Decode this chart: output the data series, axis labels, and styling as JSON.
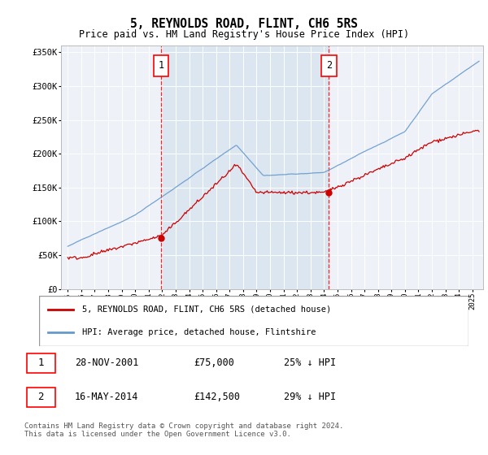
{
  "title": "5, REYNOLDS ROAD, FLINT, CH6 5RS",
  "subtitle": "Price paid vs. HM Land Registry's House Price Index (HPI)",
  "sale1_label": "28-NOV-2001",
  "sale1_price": 75000,
  "sale1_hpi_pct": "25% ↓ HPI",
  "sale2_label": "16-MAY-2014",
  "sale2_price": 142500,
  "sale2_hpi_pct": "29% ↓ HPI",
  "legend_red": "5, REYNOLDS ROAD, FLINT, CH6 5RS (detached house)",
  "legend_blue": "HPI: Average price, detached house, Flintshire",
  "footer": "Contains HM Land Registry data © Crown copyright and database right 2024.\nThis data is licensed under the Open Government Licence v3.0.",
  "red_color": "#cc0000",
  "blue_color": "#6699cc",
  "shade_color": "#dce6f1",
  "bg_color": "#eef2f8",
  "ylim": [
    0,
    360000
  ],
  "yticks": [
    0,
    50000,
    100000,
    150000,
    200000,
    250000,
    300000,
    350000
  ],
  "sale1_t": 2001.91,
  "sale2_t": 2014.37,
  "xmin": 1994.5,
  "xmax": 2025.8
}
